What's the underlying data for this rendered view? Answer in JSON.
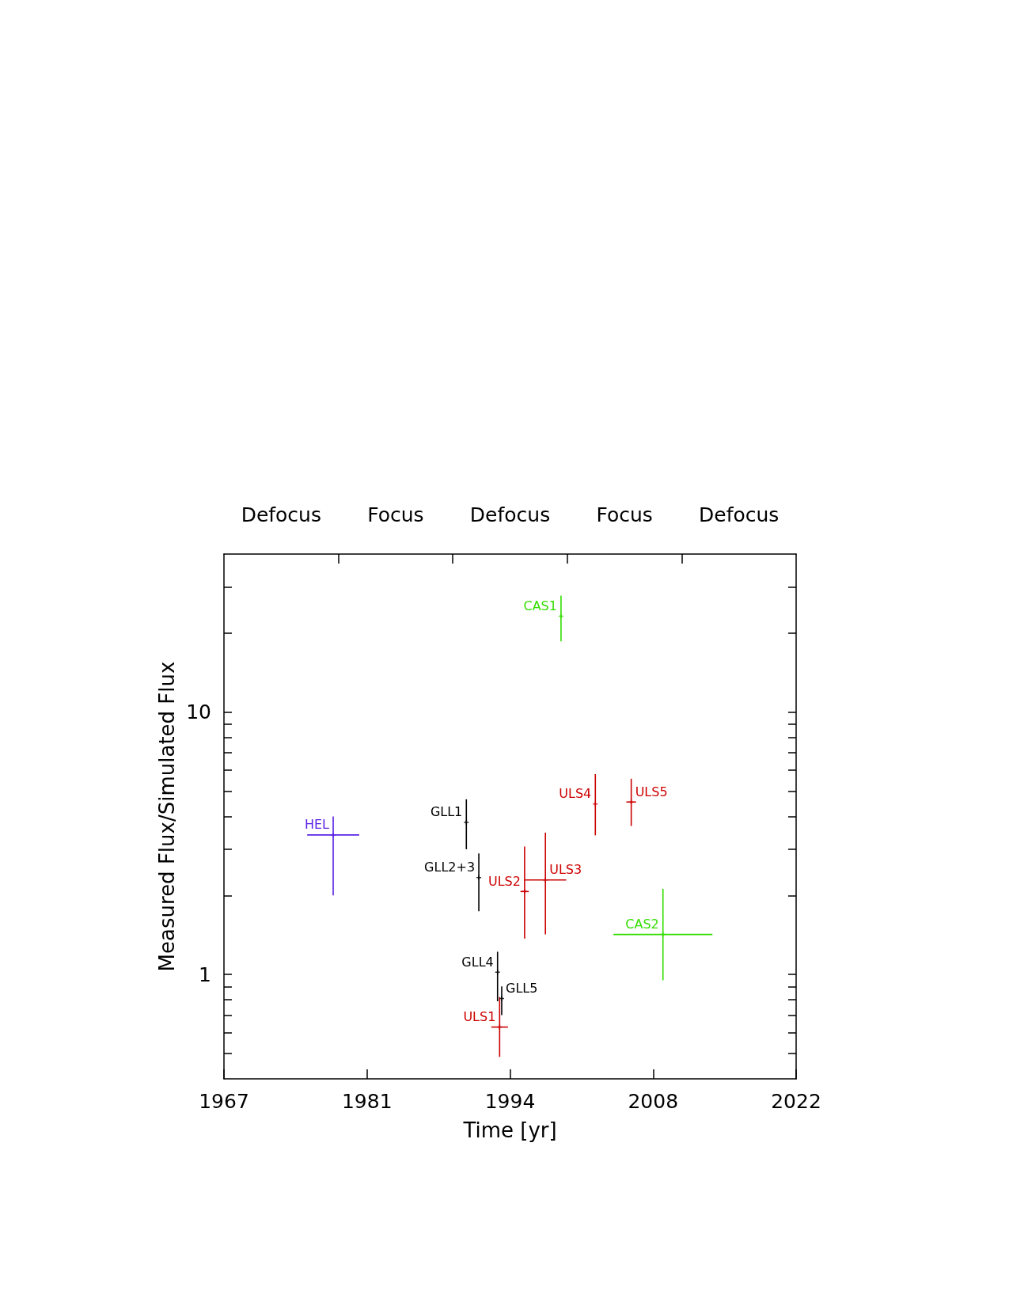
{
  "chart_data": {
    "type": "scatter",
    "xlabel": "Time [yr]",
    "ylabel": "Measured Flux/Simulated Flux",
    "annotations": [
      "Defocus",
      "Focus",
      "Defocus",
      "Focus",
      "Defocus"
    ],
    "xlim": [
      1967,
      2022
    ],
    "xticks": [
      1967,
      {
        "value": 1980.75,
        "label": "1981"
      },
      {
        "value": 1994.5,
        "label": "1994"
      },
      {
        "value": 2008.25,
        "label": "2008"
      },
      2022
    ],
    "ylim": [
      0.4,
      40
    ],
    "yticks": [
      {
        "value": 0.5,
        "label": null
      },
      {
        "value": 0.6,
        "label": null
      },
      {
        "value": 0.7,
        "label": null
      },
      {
        "value": 0.8,
        "label": null
      },
      {
        "value": 0.9,
        "label": null
      },
      1,
      {
        "value": 2,
        "label": null
      },
      {
        "value": 3,
        "label": null
      },
      {
        "value": 4,
        "label": null
      },
      {
        "value": 5,
        "label": null
      },
      {
        "value": 6,
        "label": null
      },
      {
        "value": 7,
        "label": null
      },
      {
        "value": 8,
        "label": null
      },
      {
        "value": 9,
        "label": null
      },
      10,
      {
        "value": 20,
        "label": null
      },
      {
        "value": 30,
        "label": null
      }
    ],
    "log": "y",
    "marker": "cross",
    "series": [
      {
        "name": "HEL",
        "color": "#5b22e6",
        "x": [
          1977.5
        ],
        "values": [
          3.4
        ],
        "errors": [
          [
            2.0,
            4.0
          ]
        ],
        "xerrors": [
          2.5
        ]
      },
      {
        "name": "GLL1",
        "color": "#000000",
        "x": [
          1990.3
        ],
        "values": [
          3.8
        ],
        "errors": [
          [
            3.0,
            4.65
          ]
        ]
      },
      {
        "name": "GLL2+3",
        "color": "#000000",
        "x": [
          1991.5
        ],
        "values": [
          2.34
        ],
        "errors": [
          [
            1.74,
            2.89
          ]
        ]
      },
      {
        "name": "GLL4",
        "color": "#000000",
        "x": [
          1993.3
        ],
        "values": [
          1.02
        ],
        "errors": [
          [
            0.79,
            1.22
          ]
        ]
      },
      {
        "name": "GLL5",
        "color": "#000000",
        "x": [
          1993.7
        ],
        "values": [
          0.81
        ],
        "errors": [
          [
            0.7,
            0.9
          ]
        ]
      },
      {
        "name": "ULS1",
        "color": "#cc0000",
        "x": [
          1993.5
        ],
        "values": [
          0.63
        ],
        "errors": [
          [
            0.485,
            0.82
          ]
        ],
        "xerrors": [
          0.8
        ]
      },
      {
        "name": "ULS2",
        "color": "#cc0000",
        "x": [
          1995.9
        ],
        "values": [
          2.07
        ],
        "errors": [
          [
            1.37,
            3.07
          ]
        ],
        "xerrors": [
          0.4
        ]
      },
      {
        "name": "ULS3",
        "color": "#cc0000",
        "x": [
          1997.9
        ],
        "values": [
          2.29
        ],
        "errors": [
          [
            1.42,
            3.47
          ]
        ],
        "xerrors": [
          2.0
        ]
      },
      {
        "name": "ULS4",
        "color": "#cc0000",
        "x": [
          2002.7
        ],
        "values": [
          4.46
        ],
        "errors": [
          [
            3.39,
            5.8
          ]
        ]
      },
      {
        "name": "ULS5",
        "color": "#cc0000",
        "x": [
          2006.15
        ],
        "values": [
          4.54
        ],
        "errors": [
          [
            3.68,
            5.57
          ]
        ],
        "xerrors": [
          0.47
        ]
      },
      {
        "name": "CAS1",
        "color": "#33dd00",
        "x": [
          1999.4
        ],
        "values": [
          23.2
        ],
        "errors": [
          4.6
        ]
      },
      {
        "name": "CAS2",
        "color": "#33dd00",
        "x": [
          2009.2
        ],
        "values": [
          1.42
        ],
        "errors": [
          [
            0.95,
            2.12
          ]
        ],
        "xerrors": [
          4.76
        ]
      }
    ]
  }
}
